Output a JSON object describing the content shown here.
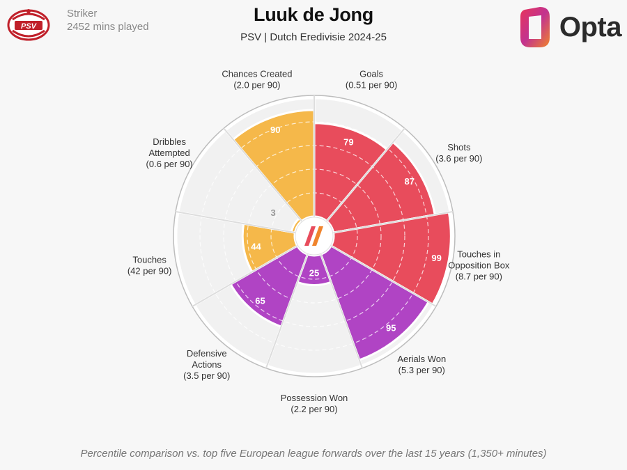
{
  "header": {
    "position": "Striker",
    "minutes": "2452 mins played",
    "player_name": "Luuk de Jong",
    "subtitle": "PSV | Dutch Eredivisie 2024-25",
    "club_badge_text": "PSV",
    "brand": "Opta",
    "footer": "Percentile comparison vs. top five European league forwards over the last 15 years (1,350+ minutes)"
  },
  "colors": {
    "attack": "#e84c5c",
    "possession": "#f5b84a",
    "defence": "#b044c4",
    "grid": "#d0d0d0",
    "wedge_bg": "#f1f1f1",
    "background": "#f7f7f7"
  },
  "chart_data": {
    "type": "pie",
    "subtype": "polar-percentile",
    "title": "Luuk de Jong",
    "rlim": [
      0,
      100
    ],
    "rings": [
      20,
      40,
      60,
      80,
      100
    ],
    "categories": [
      {
        "name": "Goals",
        "label": [
          "Goals",
          "(0.51 per 90)"
        ],
        "value": 79,
        "group": "attack"
      },
      {
        "name": "Shots",
        "label": [
          "Shots",
          "(3.6 per 90)"
        ],
        "value": 87,
        "group": "attack"
      },
      {
        "name": "Touches in Opposition Box",
        "label": [
          "Touches in",
          "Opposition Box",
          "(8.7 per 90)"
        ],
        "value": 99,
        "group": "attack"
      },
      {
        "name": "Aerials Won",
        "label": [
          "Aerials Won",
          "(5.3 per 90)"
        ],
        "value": 95,
        "group": "defence"
      },
      {
        "name": "Possession Won",
        "label": [
          "Possession Won",
          "(2.2 per 90)"
        ],
        "value": 25,
        "group": "defence"
      },
      {
        "name": "Defensive Actions",
        "label": [
          "Defensive",
          "Actions",
          "(3.5 per 90)"
        ],
        "value": 65,
        "group": "defence"
      },
      {
        "name": "Touches",
        "label": [
          "Touches",
          "(42 per 90)"
        ],
        "value": 44,
        "group": "possession"
      },
      {
        "name": "Dribbles Attempted",
        "label": [
          "Dribbles",
          "Attempted",
          "(0.6 per 90)"
        ],
        "value": 3,
        "group": "possession"
      },
      {
        "name": "Chances Created",
        "label": [
          "Chances Created",
          "(2.0 per 90)"
        ],
        "value": 90,
        "group": "possession"
      }
    ]
  }
}
